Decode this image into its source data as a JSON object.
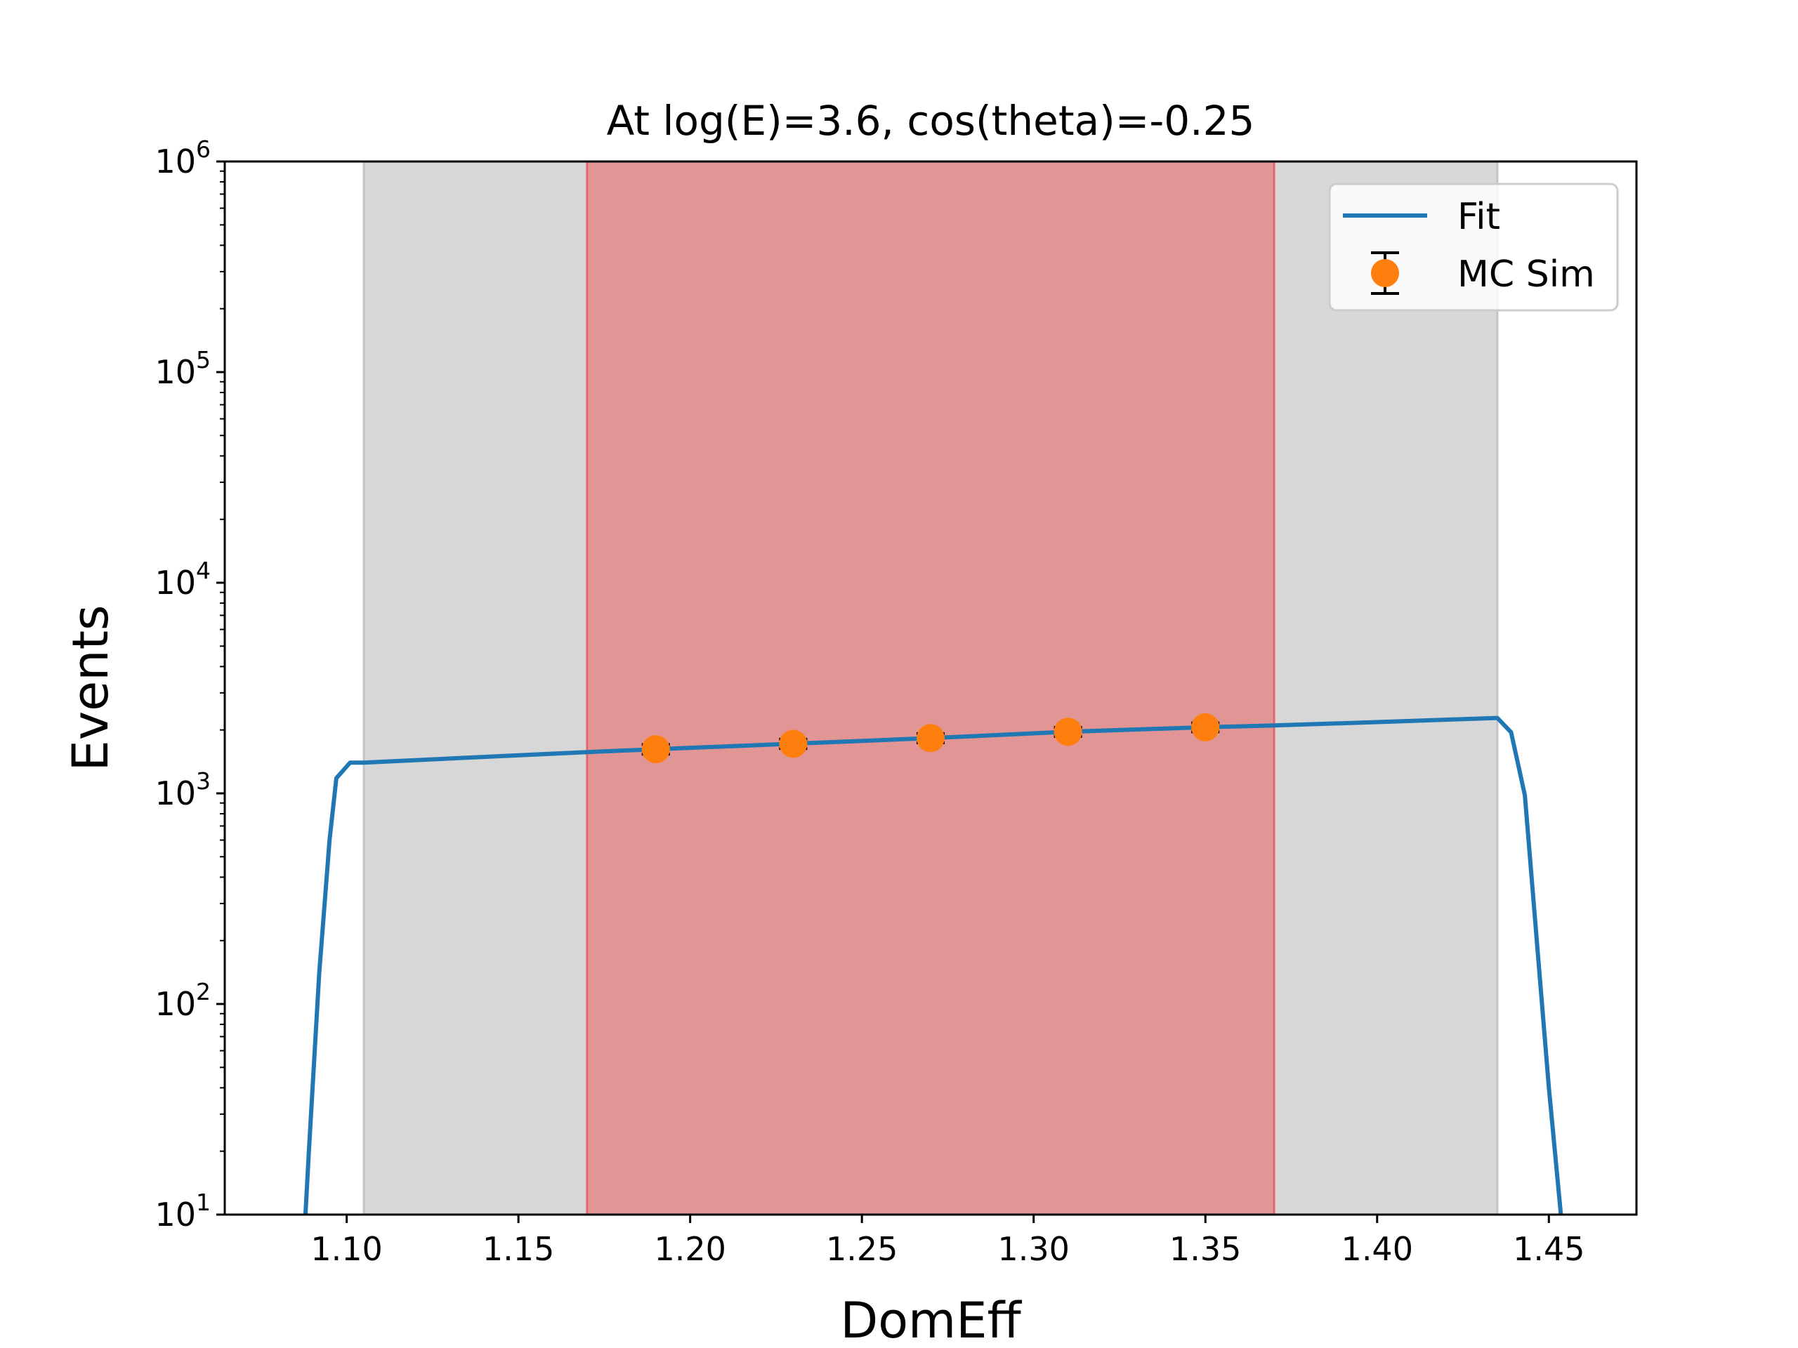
{
  "chart_data": {
    "type": "line",
    "title": "At log(E)=3.6, cos(theta)=-0.25",
    "xlabel": "DomEff",
    "ylabel": "Events",
    "xlim": [
      1.0645,
      1.4755
    ],
    "ylim": [
      10,
      1000000
    ],
    "yscale": "log",
    "grid": false,
    "legend_position": "top-right",
    "x_ticks": [
      1.1,
      1.15,
      1.2,
      1.25,
      1.3,
      1.35,
      1.4,
      1.45
    ],
    "x_tick_labels": [
      "1.10",
      "1.15",
      "1.20",
      "1.25",
      "1.30",
      "1.35",
      "1.40",
      "1.45"
    ],
    "y_ticks": [
      {
        "value": 10,
        "base": "10",
        "exp": "1"
      },
      {
        "value": 100,
        "base": "10",
        "exp": "2"
      },
      {
        "value": 1000,
        "base": "10",
        "exp": "3"
      },
      {
        "value": 10000,
        "base": "10",
        "exp": "4"
      },
      {
        "value": 100000,
        "base": "10",
        "exp": "5"
      },
      {
        "value": 1000000,
        "base": "10",
        "exp": "6"
      }
    ],
    "bands": [
      {
        "x0": 1.105,
        "x1": 1.435,
        "color": "#d7d7d7",
        "edge": "#c4c4c4"
      },
      {
        "x0": 1.17,
        "x1": 1.37,
        "color": "#e29595",
        "edge": "#e06868"
      }
    ],
    "series": [
      {
        "name": "Fit",
        "kind": "line",
        "color": "#1f77b4",
        "x": [
          1.088,
          1.089,
          1.092,
          1.095,
          1.097,
          1.101,
          1.105,
          1.17,
          1.19,
          1.23,
          1.27,
          1.31,
          1.35,
          1.37,
          1.4,
          1.435,
          1.439,
          1.443,
          1.446,
          1.45,
          1.4535
        ],
        "y": [
          10,
          20,
          140,
          600,
          1180,
          1400,
          1400,
          1570,
          1620,
          1720,
          1830,
          1960,
          2060,
          2100,
          2180,
          2280,
          1950,
          980,
          250,
          40,
          10
        ]
      },
      {
        "name": "MC Sim",
        "kind": "errorbar",
        "color": "#ff7f0e",
        "x": [
          1.19,
          1.23,
          1.27,
          1.31,
          1.35
        ],
        "y": [
          1620,
          1720,
          1830,
          1960,
          2060
        ],
        "yerr": [
          85,
          88,
          92,
          96,
          100
        ]
      }
    ]
  }
}
